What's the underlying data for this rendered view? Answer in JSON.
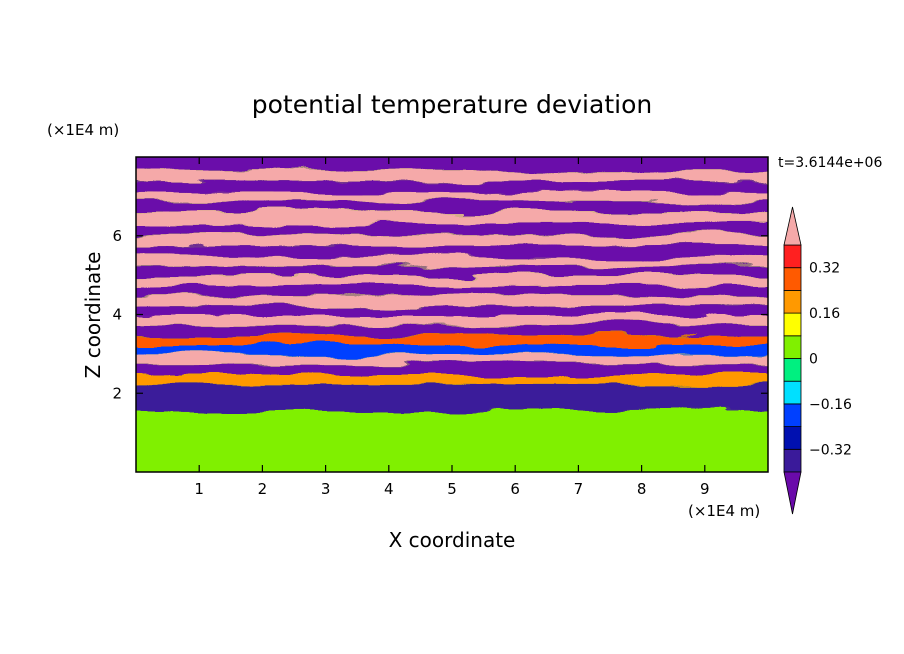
{
  "chart_data": {
    "type": "heatmap",
    "title": "potential temperature deviation",
    "xlabel": "X coordinate",
    "ylabel": "Z coordinate",
    "x_unit": "(×1E4 m)",
    "y_unit": "(×1E4 m)",
    "time_label": "t=3.6144e+06",
    "xlim": [
      0,
      10
    ],
    "ylim": [
      0,
      8
    ],
    "x_ticks": [
      "1",
      "2",
      "3",
      "4",
      "5",
      "6",
      "7",
      "8",
      "9"
    ],
    "y_ticks": [
      "2",
      "4",
      "6"
    ],
    "colorbar": {
      "levels": [
        -0.4,
        -0.32,
        -0.24,
        -0.16,
        -0.08,
        0,
        0.08,
        0.16,
        0.24,
        0.32,
        0.4
      ],
      "tick_labels": [
        "0.32",
        "0.16",
        "0",
        "−0.16",
        "−0.32"
      ],
      "tick_values": [
        0.32,
        0.16,
        0,
        -0.16,
        -0.32
      ],
      "colors": [
        "#6a0aaa",
        "#3a1a9a",
        "#0010b0",
        "#0040ff",
        "#00e0ff",
        "#00f080",
        "#80f000",
        "#ffff00",
        "#ff9900",
        "#ff5a00",
        "#ff2020",
        "#f5a9a9"
      ],
      "extend": "both"
    },
    "bands": [
      {
        "z": 7.8,
        "value": -0.45
      },
      {
        "z": 7.5,
        "value": 0.45
      },
      {
        "z": 7.25,
        "value": -0.45
      },
      {
        "z": 7.0,
        "value": 0.45
      },
      {
        "z": 6.75,
        "value": -0.45
      },
      {
        "z": 6.45,
        "value": 0.45
      },
      {
        "z": 6.15,
        "value": -0.45
      },
      {
        "z": 5.9,
        "value": 0.45
      },
      {
        "z": 5.6,
        "value": -0.45
      },
      {
        "z": 5.35,
        "value": 0.45
      },
      {
        "z": 5.1,
        "value": -0.45
      },
      {
        "z": 4.85,
        "value": 0.45
      },
      {
        "z": 4.6,
        "value": -0.45
      },
      {
        "z": 4.35,
        "value": 0.45
      },
      {
        "z": 4.1,
        "value": -0.45
      },
      {
        "z": 3.85,
        "value": 0.45
      },
      {
        "z": 3.6,
        "value": -0.45
      },
      {
        "z": 3.35,
        "value": 0.3
      },
      {
        "z": 3.1,
        "value": -0.2
      },
      {
        "z": 2.85,
        "value": 0.45
      },
      {
        "z": 2.6,
        "value": -0.45
      },
      {
        "z": 2.35,
        "value": 0.2
      },
      {
        "z": 2.1,
        "value": -0.35
      },
      {
        "z": 1.0,
        "value": 0.0
      }
    ]
  }
}
